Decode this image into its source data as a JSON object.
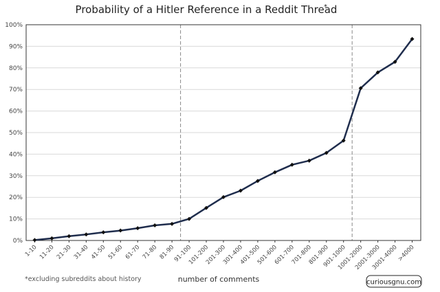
{
  "chart_data": {
    "type": "line",
    "title": "Probability of a Hitler Reference in a Reddit Thread",
    "title_mark": "*",
    "xlabel": "number of comments",
    "ylabel": "",
    "ylim": [
      0,
      100
    ],
    "y_ticks": [
      "0%",
      "10%",
      "20%",
      "30%",
      "40%",
      "50%",
      "60%",
      "70%",
      "80%",
      "90%",
      "100%"
    ],
    "grid": true,
    "categories": [
      "1-10",
      "11-20",
      "21-30",
      "31-40",
      "41-50",
      "51-60",
      "61-70",
      "71-80",
      "81-90",
      "91-100",
      "101-200",
      "201-300",
      "301-400",
      "401-500",
      "501-600",
      "601-700",
      "701-800",
      "801-900",
      "901-1000",
      "1001-2000",
      "2001-3000",
      "3001-4000",
      ">4000"
    ],
    "series": [
      {
        "values": [
          0.2,
          1.0,
          2.0,
          2.8,
          3.8,
          4.6,
          5.7,
          7.0,
          7.7,
          10.0,
          15.1,
          20.1,
          23.1,
          27.6,
          31.6,
          35.1,
          37.0,
          40.6,
          46.3,
          70.6,
          77.9,
          82.8,
          93.4
        ],
        "color": "#1f2d4d"
      }
    ],
    "reference_lines_after": [
      "81-90",
      "901-1000"
    ],
    "footnote": "*excluding subreddits about history",
    "credit": "curiousgnu.com"
  }
}
